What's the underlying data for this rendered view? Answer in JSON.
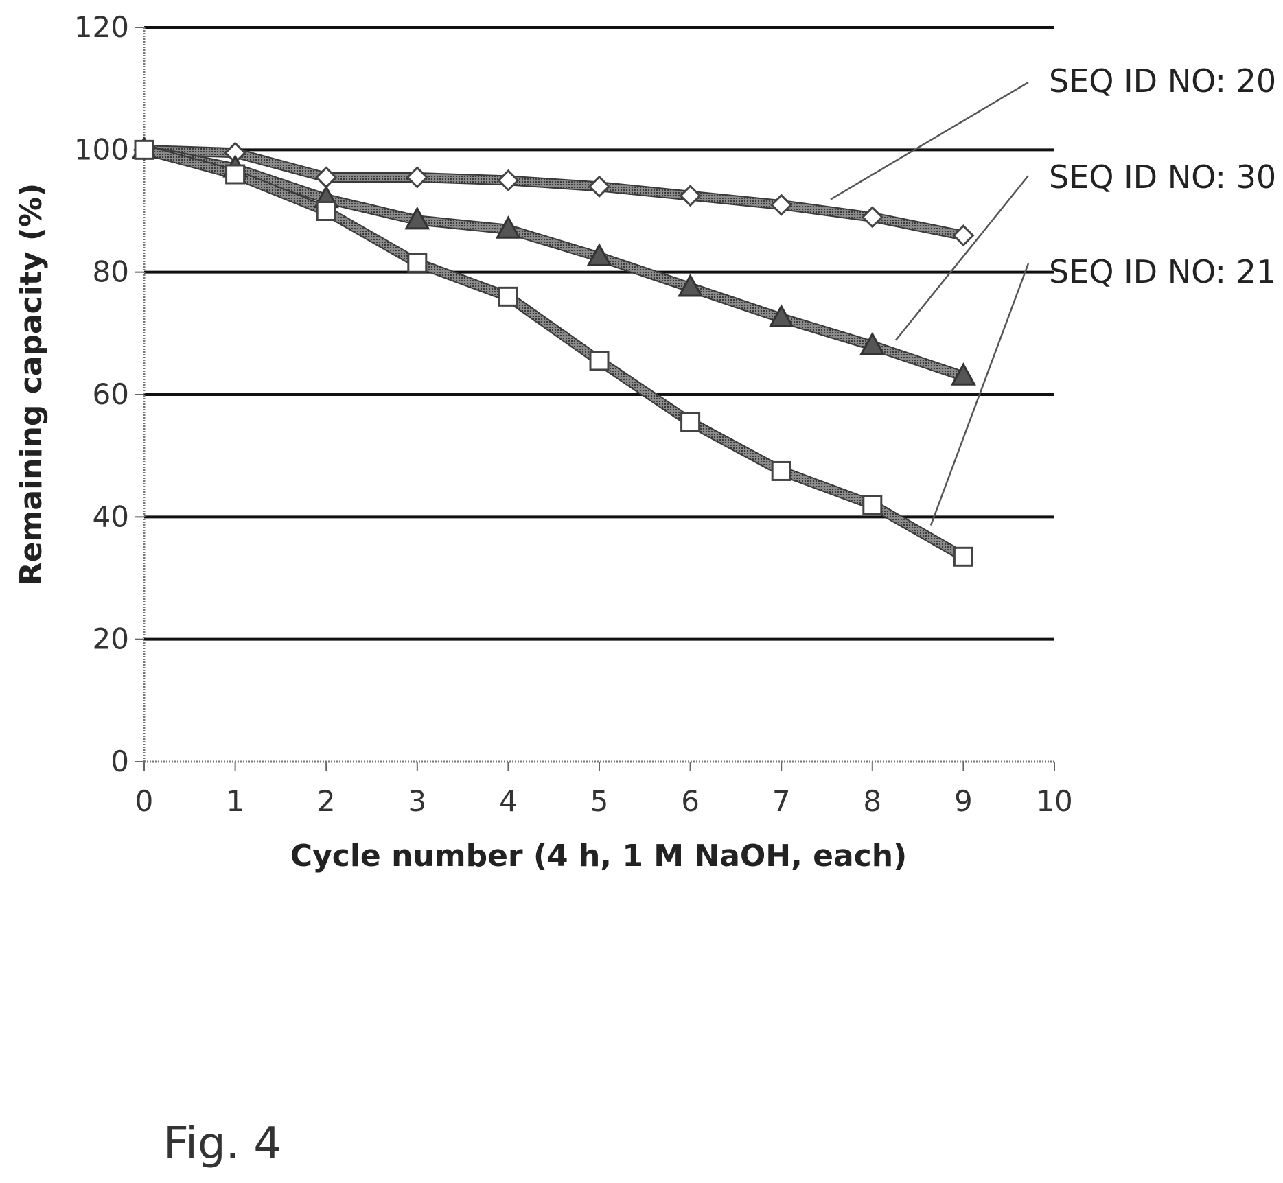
{
  "figure_label": "Fig. 4",
  "chart_data": {
    "type": "line",
    "xlabel": "Cycle number (4 h, 1 M NaOH, each)",
    "ylabel": "Remaining capacity (%)",
    "xlim": [
      0,
      10
    ],
    "ylim": [
      0,
      120
    ],
    "x_ticks": [
      0,
      1,
      2,
      3,
      4,
      5,
      6,
      7,
      8,
      9,
      10
    ],
    "y_ticks": [
      0,
      20,
      40,
      60,
      80,
      100,
      120
    ],
    "grid": "horizontal",
    "legend_placement": "right, with leader lines",
    "x": [
      0,
      1,
      2,
      3,
      4,
      5,
      6,
      7,
      8,
      9
    ],
    "series": [
      {
        "name": "SEQ ID NO: 20",
        "marker": "diamond",
        "values": [
          100,
          99.5,
          95.5,
          95.5,
          95,
          94,
          92.5,
          91,
          89,
          86
        ]
      },
      {
        "name": "SEQ ID NO: 30",
        "marker": "triangle",
        "values": [
          100,
          97,
          92,
          88.5,
          87,
          82.5,
          77.5,
          72.5,
          68,
          63
        ]
      },
      {
        "name": "SEQ ID NO: 21",
        "marker": "square",
        "values": [
          100,
          96,
          90,
          81.5,
          76,
          65.5,
          55.5,
          47.5,
          42,
          33.5
        ]
      }
    ],
    "colors": {
      "line": "#6b6b6b",
      "marker_fill": "#ffffff",
      "marker_stroke": "#444444",
      "triangle_fill": "#555555",
      "grid": "#111111"
    }
  }
}
